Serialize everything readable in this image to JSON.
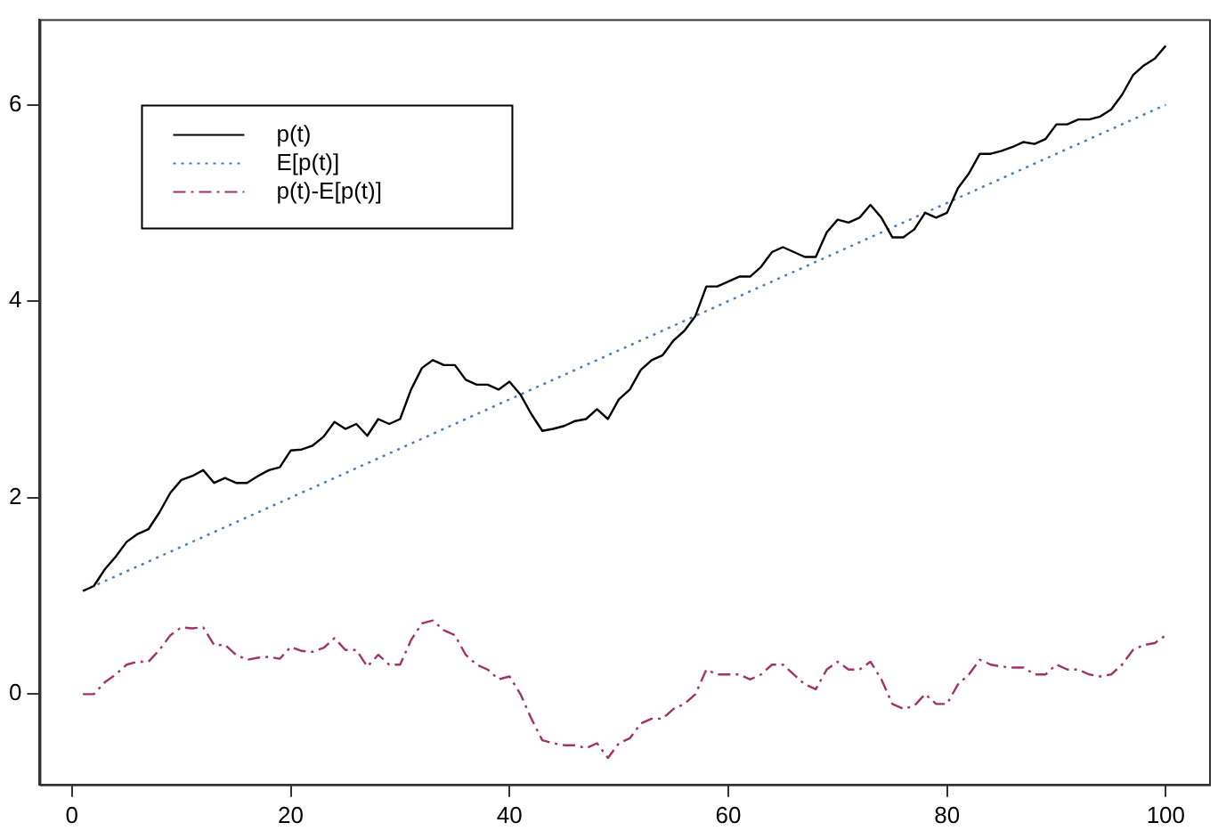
{
  "chart_data": {
    "type": "line",
    "x": [
      1,
      2,
      3,
      4,
      5,
      6,
      7,
      8,
      9,
      10,
      11,
      12,
      13,
      14,
      15,
      16,
      17,
      18,
      19,
      20,
      21,
      22,
      23,
      24,
      25,
      26,
      27,
      28,
      29,
      30,
      31,
      32,
      33,
      34,
      35,
      36,
      37,
      38,
      39,
      40,
      41,
      42,
      43,
      44,
      45,
      46,
      47,
      48,
      49,
      50,
      51,
      52,
      53,
      54,
      55,
      56,
      57,
      58,
      59,
      60,
      61,
      62,
      63,
      64,
      65,
      66,
      67,
      68,
      69,
      70,
      71,
      72,
      73,
      74,
      75,
      76,
      77,
      78,
      79,
      80,
      81,
      82,
      83,
      84,
      85,
      86,
      87,
      88,
      89,
      90,
      91,
      92,
      93,
      94,
      95,
      96,
      97,
      98,
      99,
      100
    ],
    "series": [
      {
        "name": "p(t)",
        "color": "#000000",
        "line_style": "solid",
        "values": [
          1.05,
          1.1,
          1.27,
          1.4,
          1.55,
          1.63,
          1.68,
          1.85,
          2.05,
          2.18,
          2.22,
          2.28,
          2.15,
          2.2,
          2.15,
          2.15,
          2.22,
          2.28,
          2.31,
          2.48,
          2.49,
          2.53,
          2.62,
          2.77,
          2.7,
          2.75,
          2.63,
          2.8,
          2.75,
          2.8,
          3.1,
          3.32,
          3.4,
          3.35,
          3.35,
          3.2,
          3.15,
          3.15,
          3.1,
          3.18,
          3.05,
          2.85,
          2.68,
          2.7,
          2.73,
          2.78,
          2.8,
          2.9,
          2.8,
          3.0,
          3.1,
          3.3,
          3.4,
          3.45,
          3.6,
          3.7,
          3.85,
          4.15,
          4.15,
          4.2,
          4.25,
          4.25,
          4.35,
          4.5,
          4.55,
          4.5,
          4.45,
          4.45,
          4.7,
          4.83,
          4.8,
          4.85,
          4.98,
          4.85,
          4.65,
          4.65,
          4.73,
          4.9,
          4.85,
          4.9,
          5.15,
          5.3,
          5.5,
          5.5,
          5.53,
          5.57,
          5.62,
          5.6,
          5.65,
          5.8,
          5.8,
          5.85,
          5.85,
          5.88,
          5.95,
          6.1,
          6.3,
          6.4,
          6.47,
          6.6
        ]
      },
      {
        "name": "E[p(t)]",
        "color": "#4a78b8",
        "line_style": "dotted",
        "x": [
          1,
          100
        ],
        "values": [
          1.05,
          6
        ]
      },
      {
        "name": "p(t)-E[p(t)]",
        "color": "#a0336a",
        "line_style": "dashed",
        "values": [
          0,
          0,
          0.12,
          0.2,
          0.3,
          0.33,
          0.33,
          0.45,
          0.6,
          0.68,
          0.67,
          0.68,
          0.5,
          0.5,
          0.4,
          0.35,
          0.37,
          0.38,
          0.36,
          0.48,
          0.44,
          0.43,
          0.47,
          0.57,
          0.45,
          0.45,
          0.28,
          0.4,
          0.3,
          0.3,
          0.55,
          0.72,
          0.75,
          0.65,
          0.6,
          0.4,
          0.3,
          0.25,
          0.15,
          0.18,
          0,
          -0.25,
          -0.47,
          -0.5,
          -0.52,
          -0.52,
          -0.55,
          -0.5,
          -0.65,
          -0.5,
          -0.45,
          -0.3,
          -0.25,
          -0.25,
          -0.15,
          -0.1,
          0,
          0.25,
          0.2,
          0.2,
          0.2,
          0.15,
          0.2,
          0.3,
          0.3,
          0.2,
          0.1,
          0.05,
          0.25,
          0.33,
          0.25,
          0.25,
          0.33,
          0.15,
          -0.1,
          -0.15,
          -0.12,
          0,
          -0.1,
          -0.1,
          0.1,
          0.2,
          0.35,
          0.3,
          0.28,
          0.27,
          0.27,
          0.2,
          0.2,
          0.3,
          0.25,
          0.25,
          0.2,
          0.18,
          0.2,
          0.3,
          0.45,
          0.5,
          0.52,
          0.6
        ]
      }
    ],
    "xlim": [
      -2.96,
      103.96
    ],
    "xticks": [
      0,
      20,
      40,
      60,
      80,
      100
    ],
    "ylim": [
      -0.92,
      6.87
    ],
    "yticks": [
      0,
      2,
      4,
      6
    ],
    "grid": false,
    "legend": "top left",
    "marker": "none"
  }
}
